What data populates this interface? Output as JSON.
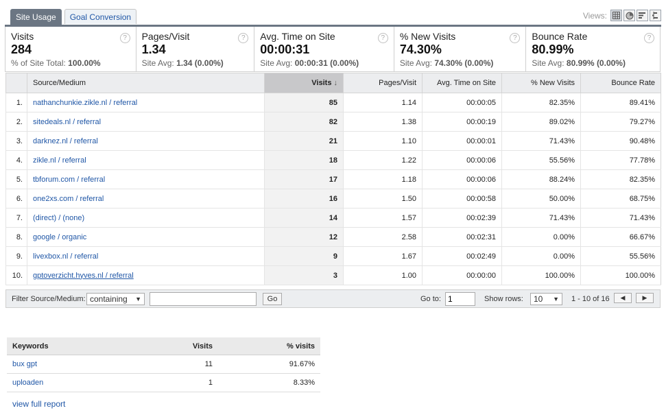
{
  "tabs": {
    "site_usage": "Site Usage",
    "goal_conversion": "Goal Conversion"
  },
  "views": {
    "label": "Views:",
    "icons": [
      "table-view-icon",
      "pie-view-icon",
      "performance-view-icon",
      "comparison-view-icon"
    ]
  },
  "summary": [
    {
      "name": "Visits",
      "value": "284",
      "sub_label": "% of Site Total:",
      "sub_value": "100.00%"
    },
    {
      "name": "Pages/Visit",
      "value": "1.34",
      "sub_label": "Site Avg:",
      "sub_value": "1.34 (0.00%)"
    },
    {
      "name": "Avg. Time on Site",
      "value": "00:00:31",
      "sub_label": "Site Avg:",
      "sub_value": "00:00:31 (0.00%)"
    },
    {
      "name": "% New Visits",
      "value": "74.30%",
      "sub_label": "Site Avg:",
      "sub_value": "74.30% (0.00%)"
    },
    {
      "name": "Bounce Rate",
      "value": "80.99%",
      "sub_label": "Site Avg:",
      "sub_value": "80.99% (0.00%)"
    }
  ],
  "help_glyph": "?",
  "table": {
    "headers": [
      "Source/Medium",
      "Visits",
      "Pages/Visit",
      "Avg. Time on Site",
      "% New Visits",
      "Bounce Rate"
    ],
    "sort_glyph": "↓",
    "rows": [
      {
        "rank": "1.",
        "source": "nathanchunkie.zikle.nl / referral",
        "visits": "85",
        "pages": "1.14",
        "time": "00:00:05",
        "new": "82.35%",
        "bounce": "89.41%"
      },
      {
        "rank": "2.",
        "source": "sitedeals.nl / referral",
        "visits": "82",
        "pages": "1.38",
        "time": "00:00:19",
        "new": "89.02%",
        "bounce": "79.27%"
      },
      {
        "rank": "3.",
        "source": "darknez.nl / referral",
        "visits": "21",
        "pages": "1.10",
        "time": "00:00:01",
        "new": "71.43%",
        "bounce": "90.48%"
      },
      {
        "rank": "4.",
        "source": "zikle.nl / referral",
        "visits": "18",
        "pages": "1.22",
        "time": "00:00:06",
        "new": "55.56%",
        "bounce": "77.78%"
      },
      {
        "rank": "5.",
        "source": "tbforum.com / referral",
        "visits": "17",
        "pages": "1.18",
        "time": "00:00:06",
        "new": "88.24%",
        "bounce": "82.35%"
      },
      {
        "rank": "6.",
        "source": "one2xs.com / referral",
        "visits": "16",
        "pages": "1.50",
        "time": "00:00:58",
        "new": "50.00%",
        "bounce": "68.75%"
      },
      {
        "rank": "7.",
        "source": "(direct) / (none)",
        "visits": "14",
        "pages": "1.57",
        "time": "00:02:39",
        "new": "71.43%",
        "bounce": "71.43%"
      },
      {
        "rank": "8.",
        "source": "google / organic",
        "visits": "12",
        "pages": "2.58",
        "time": "00:02:31",
        "new": "0.00%",
        "bounce": "66.67%"
      },
      {
        "rank": "9.",
        "source": "livexbox.nl / referral",
        "visits": "9",
        "pages": "1.67",
        "time": "00:02:49",
        "new": "0.00%",
        "bounce": "55.56%"
      },
      {
        "rank": "10.",
        "source": "gptoverzicht.hyves.nl / referral",
        "visits": "3",
        "pages": "1.00",
        "time": "00:00:00",
        "new": "100.00%",
        "bounce": "100.00%"
      }
    ]
  },
  "footer": {
    "filter_label": "Filter Source/Medium:",
    "filter_mode": "containing",
    "filter_value": "",
    "go_label": "Go",
    "goto_label": "Go to:",
    "goto_value": "1",
    "show_rows_label": "Show rows:",
    "show_rows_value": "10",
    "range_text": "1 - 10 of 16",
    "prev_glyph": "◀",
    "next_glyph": "▶",
    "dropdown_glyph": "▼"
  },
  "keywords": {
    "headers": [
      "Keywords",
      "Visits",
      "% visits"
    ],
    "rows": [
      {
        "keyword": "bux gpt",
        "visits": "11",
        "pct": "91.67%"
      },
      {
        "keyword": "uploaden",
        "visits": "1",
        "pct": "8.33%"
      }
    ],
    "view_full_report": "view full report"
  },
  "colors": {
    "tab_active": "#6b7683",
    "link": "#1f56a6",
    "sorted_header": "#c8c8ca"
  }
}
